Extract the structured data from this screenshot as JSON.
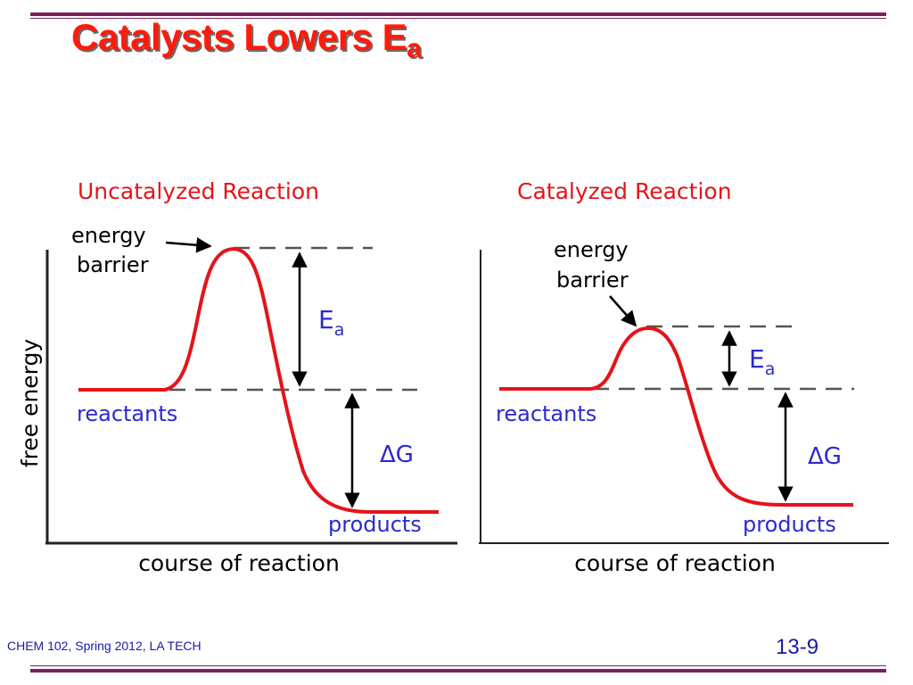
{
  "slide": {
    "title_main": "Catalysts Lowers E",
    "title_sub": "a",
    "footer_left": "CHEM 102, Spring 2012, LA TECH",
    "footer_right": "13-9"
  },
  "colors": {
    "title": "#ff1a0a",
    "curve": "#e4141a",
    "label_blue": "#2a2ad0",
    "footer": "#1a1aa6",
    "rule": "#7a1f5c"
  },
  "y_axis_label": "free energy",
  "panels": [
    {
      "title": "Uncatalyzed Reaction",
      "barrier_label_line1": "energy",
      "barrier_label_line2": "barrier",
      "ea_label": "E",
      "ea_sub": "a",
      "delta_g_label": "ΔG",
      "reactants_label": "reactants",
      "products_label": "products",
      "x_axis_label": "course of reaction"
    },
    {
      "title": "Catalyzed Reaction",
      "barrier_label_line1": "energy",
      "barrier_label_line2": "barrier",
      "ea_label": "E",
      "ea_sub": "a",
      "delta_g_label": "ΔG",
      "reactants_label": "reactants",
      "products_label": "products",
      "x_axis_label": "course of reaction"
    }
  ]
}
